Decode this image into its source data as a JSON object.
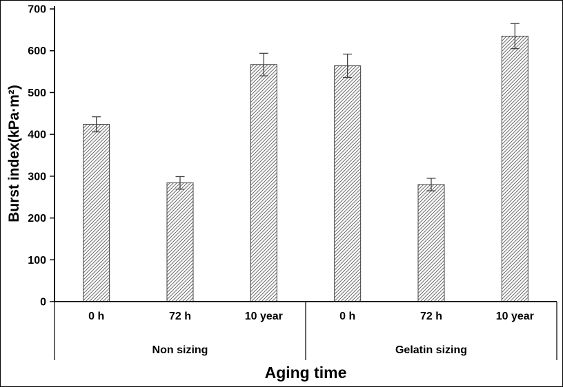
{
  "chart_data": {
    "type": "bar",
    "title": "",
    "xlabel": "Aging time",
    "ylabel": "Burst index(kPa·m²)",
    "ylim": [
      0,
      700
    ],
    "yticks": [
      0,
      100,
      200,
      300,
      400,
      500,
      600,
      700
    ],
    "grid": false,
    "legend": "none",
    "bar_style": "diagonal-hatch",
    "error_bars": true,
    "groups": [
      {
        "label": "Non sizing",
        "categories": [
          "0 h",
          "72 h",
          "10 year"
        ],
        "values": [
          424,
          284,
          567
        ],
        "errors": [
          18,
          15,
          27
        ]
      },
      {
        "label": "Gelatin sizing",
        "categories": [
          "0 h",
          "72 h",
          "10 year"
        ],
        "values": [
          564,
          280,
          635
        ],
        "errors": [
          28,
          15,
          30
        ]
      }
    ],
    "colors": {
      "axis": "#000000",
      "bar_border": "#404040",
      "hatch": "#6b6b6b",
      "error_bar": "#404040",
      "text": "#000000",
      "background": "#ffffff"
    }
  }
}
